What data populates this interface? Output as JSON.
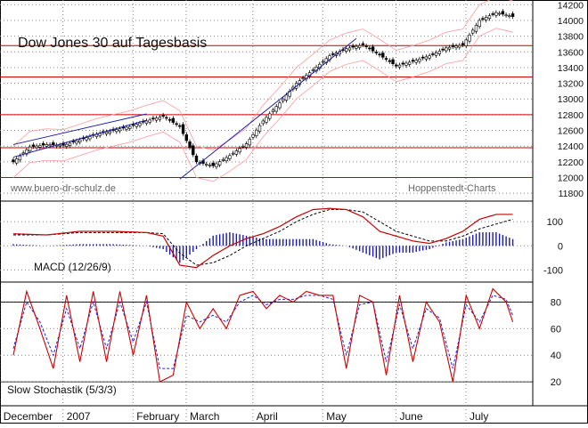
{
  "chart_data": [
    {
      "type": "candlestick",
      "title": "Dow Jones 30 auf Tagesbasis",
      "source_left": "www.buero-dr-schulz.de",
      "source_right": "Hoppenstedt-Charts",
      "y_ticks": [
        11800,
        12000,
        12200,
        12400,
        12600,
        12800,
        13000,
        13200,
        13400,
        13600,
        13800,
        14000,
        14200
      ],
      "ylim": [
        11700,
        14260
      ],
      "horizontal_lines": [
        13680,
        13280,
        12800,
        12380,
        12000
      ],
      "line_color": "#cc0000",
      "close_series": {
        "x": [
          0,
          5,
          10,
          15,
          20,
          25,
          30,
          35,
          40,
          45,
          50,
          55,
          60,
          65,
          70,
          75,
          80,
          85,
          90,
          95,
          100,
          105,
          110,
          115,
          120,
          125,
          130,
          135,
          140,
          145,
          150
        ],
        "y": [
          12200,
          12390,
          12420,
          12410,
          12480,
          12550,
          12600,
          12650,
          12720,
          12780,
          12650,
          12200,
          12150,
          12280,
          12430,
          12720,
          12950,
          13200,
          13370,
          13550,
          13640,
          13690,
          13560,
          13420,
          13480,
          13550,
          13650,
          13690,
          14000,
          14100,
          14050
        ]
      },
      "trend_lines": [
        {
          "from": [
            0,
            12420
          ],
          "to": [
            40,
            12810
          ]
        },
        {
          "from": [
            0,
            12260
          ],
          "to": [
            40,
            12730
          ]
        },
        {
          "from": [
            50,
            11980
          ],
          "to": [
            103,
            13770
          ]
        }
      ],
      "band_color": "#ff9aa0",
      "trend_line_color": "#1f1fb0"
    },
    {
      "type": "line",
      "name": "MACD (12/26/9)",
      "y_ticks": [
        100,
        0,
        -100
      ],
      "ylim": [
        -150,
        185
      ],
      "macd_color": "#cc0000",
      "signal_color": "#000000",
      "histogram_color": "#1a1aaa",
      "macd": {
        "x": [
          0,
          10,
          20,
          30,
          40,
          45,
          50,
          55,
          60,
          65,
          70,
          75,
          80,
          85,
          90,
          95,
          100,
          105,
          110,
          115,
          120,
          125,
          130,
          135,
          140,
          145,
          150
        ],
        "y": [
          50,
          45,
          60,
          60,
          55,
          40,
          -80,
          -90,
          -40,
          0,
          30,
          50,
          80,
          120,
          150,
          155,
          150,
          120,
          60,
          40,
          20,
          10,
          30,
          60,
          110,
          130,
          130
        ]
      },
      "signal": {
        "x": [
          0,
          10,
          20,
          30,
          40,
          45,
          50,
          55,
          60,
          65,
          70,
          75,
          80,
          85,
          90,
          95,
          100,
          105,
          110,
          115,
          120,
          125,
          130,
          135,
          140,
          145,
          150
        ],
        "y": [
          45,
          45,
          55,
          55,
          55,
          50,
          -30,
          -80,
          -70,
          -40,
          0,
          30,
          60,
          100,
          130,
          150,
          150,
          140,
          100,
          60,
          40,
          20,
          20,
          40,
          70,
          90,
          110
        ]
      }
    },
    {
      "type": "line",
      "name": "Slow Stochastik (5/3/3)",
      "y_ticks": [
        80,
        60,
        40,
        20
      ],
      "ylim": [
        2,
        95
      ],
      "ref_lines": [
        80,
        20
      ],
      "k_color": "#cc0000",
      "d_color": "#2020dd",
      "k": {
        "x": [
          0,
          4,
          8,
          12,
          16,
          20,
          24,
          28,
          32,
          36,
          40,
          44,
          48,
          52,
          56,
          60,
          64,
          68,
          72,
          76,
          80,
          84,
          88,
          92,
          96,
          100,
          104,
          108,
          112,
          116,
          120,
          124,
          128,
          132,
          136,
          140,
          144,
          148,
          150
        ],
        "y": [
          40,
          88,
          60,
          30,
          85,
          35,
          88,
          35,
          88,
          40,
          85,
          20,
          25,
          80,
          60,
          75,
          60,
          85,
          88,
          75,
          85,
          80,
          88,
          85,
          85,
          30,
          85,
          80,
          25,
          85,
          35,
          80,
          65,
          20,
          85,
          60,
          90,
          80,
          65
        ]
      },
      "d": {
        "x": [
          0,
          4,
          8,
          12,
          16,
          20,
          24,
          28,
          32,
          36,
          40,
          44,
          48,
          52,
          56,
          60,
          64,
          68,
          72,
          76,
          80,
          84,
          88,
          92,
          96,
          100,
          104,
          108,
          112,
          116,
          120,
          124,
          128,
          132,
          136,
          140,
          144,
          148,
          150
        ],
        "y": [
          45,
          80,
          65,
          40,
          75,
          45,
          80,
          45,
          80,
          50,
          80,
          30,
          30,
          70,
          65,
          70,
          65,
          80,
          85,
          78,
          82,
          82,
          85,
          85,
          82,
          40,
          78,
          80,
          35,
          78,
          45,
          75,
          68,
          30,
          78,
          65,
          85,
          82,
          70
        ]
      }
    }
  ],
  "x_axis": {
    "labels": [
      {
        "label": "December",
        "x": -3
      },
      {
        "label": "2007",
        "x": 16
      },
      {
        "label": "February",
        "x": 37
      },
      {
        "label": "March",
        "x": 53
      },
      {
        "label": "April",
        "x": 73
      },
      {
        "label": "May",
        "x": 94
      },
      {
        "label": "June",
        "x": 116
      },
      {
        "label": "July",
        "x": 137
      }
    ],
    "xlim": [
      -4,
      156
    ]
  }
}
